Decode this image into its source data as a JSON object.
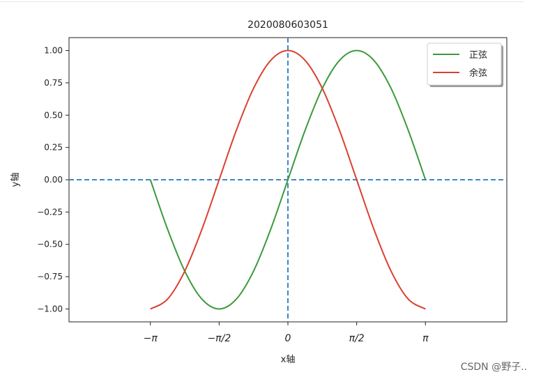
{
  "chart_data": {
    "type": "line",
    "title": "2020080603051",
    "xlabel": "x轴",
    "ylabel": "y轴",
    "xlim": [
      -5.0,
      5.0
    ],
    "ylim": [
      -1.1,
      1.1
    ],
    "x_ticks": [
      {
        "value": -3.14159,
        "label": "−π"
      },
      {
        "value": -1.5708,
        "label": "−π/2"
      },
      {
        "value": 0,
        "label": "0"
      },
      {
        "value": 1.5708,
        "label": "π/2"
      },
      {
        "value": 3.14159,
        "label": "π"
      }
    ],
    "y_ticks": [
      {
        "value": 1.0,
        "label": "1.00"
      },
      {
        "value": 0.75,
        "label": "0.75"
      },
      {
        "value": 0.5,
        "label": "0.50"
      },
      {
        "value": 0.25,
        "label": "0.25"
      },
      {
        "value": 0.0,
        "label": "0.00"
      },
      {
        "value": -0.25,
        "label": "−0.25"
      },
      {
        "value": -0.5,
        "label": "−0.50"
      },
      {
        "value": -0.75,
        "label": "−0.75"
      },
      {
        "value": -1.0,
        "label": "−1.00"
      }
    ],
    "series": [
      {
        "name": "正弦",
        "color": "#3a9a3a",
        "x": [
          -3.1416,
          -2.7489,
          -2.3562,
          -1.9635,
          -1.5708,
          -1.1781,
          -0.7854,
          -0.3927,
          0.0,
          0.3927,
          0.7854,
          1.1781,
          1.5708,
          1.9635,
          2.3562,
          2.7489,
          3.1416
        ],
        "y": [
          0.0,
          -0.3827,
          -0.7071,
          -0.9239,
          -1.0,
          -0.9239,
          -0.7071,
          -0.3827,
          0.0,
          0.3827,
          0.7071,
          0.9239,
          1.0,
          0.9239,
          0.7071,
          0.3827,
          0.0
        ]
      },
      {
        "name": "余弦",
        "color": "#d9412f",
        "x": [
          -3.1416,
          -2.7489,
          -2.3562,
          -1.9635,
          -1.5708,
          -1.1781,
          -0.7854,
          -0.3927,
          0.0,
          0.3927,
          0.7854,
          1.1781,
          1.5708,
          1.9635,
          2.3562,
          2.7489,
          3.1416
        ],
        "y": [
          -1.0,
          -0.9239,
          -0.7071,
          -0.3827,
          0.0,
          0.3827,
          0.7071,
          0.9239,
          1.0,
          0.9239,
          0.7071,
          0.3827,
          0.0,
          -0.3827,
          -0.7071,
          -0.9239,
          -1.0
        ]
      }
    ],
    "reference_lines": [
      {
        "orientation": "horizontal",
        "value": 0,
        "style": "dashed",
        "color": "#3b87c4"
      },
      {
        "orientation": "vertical",
        "value": 0,
        "style": "dashed",
        "color": "#3b87c4"
      }
    ],
    "legend": {
      "position": "top-right",
      "shadow": true
    },
    "grid": false
  },
  "watermark": "CSDN @野子.."
}
